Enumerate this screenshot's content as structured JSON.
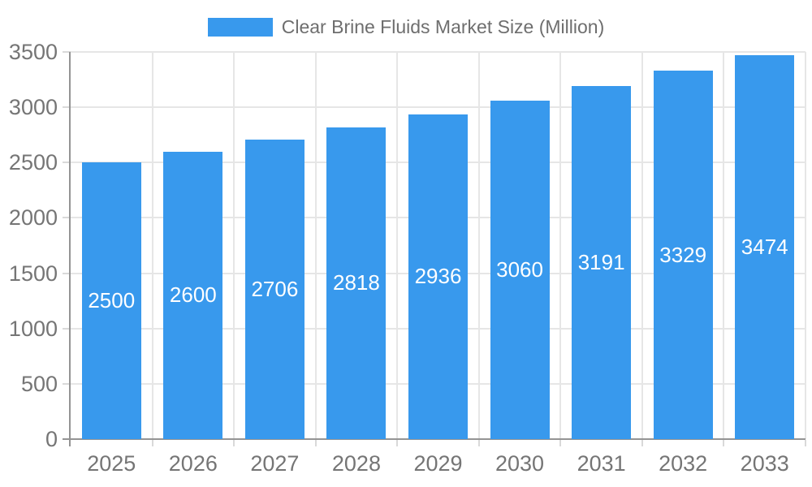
{
  "chart_data": {
    "type": "bar",
    "title": "Clear Brine Fluids Market Size (Million)",
    "categories": [
      "2025",
      "2026",
      "2027",
      "2028",
      "2029",
      "2030",
      "2031",
      "2032",
      "2033"
    ],
    "values": [
      2500,
      2600,
      2706,
      2818,
      2936,
      3060,
      3191,
      3329,
      3474
    ],
    "xlabel": "",
    "ylabel": "",
    "ylim": [
      0,
      3500
    ],
    "y_ticks": [
      0,
      500,
      1000,
      1500,
      2000,
      2500,
      3000,
      3500
    ],
    "grid": true,
    "legend_position": "top",
    "bar_color": "#3899ed",
    "value_label_color": "#ffffff",
    "axis_text_color": "#757575",
    "show_value_labels": true
  }
}
